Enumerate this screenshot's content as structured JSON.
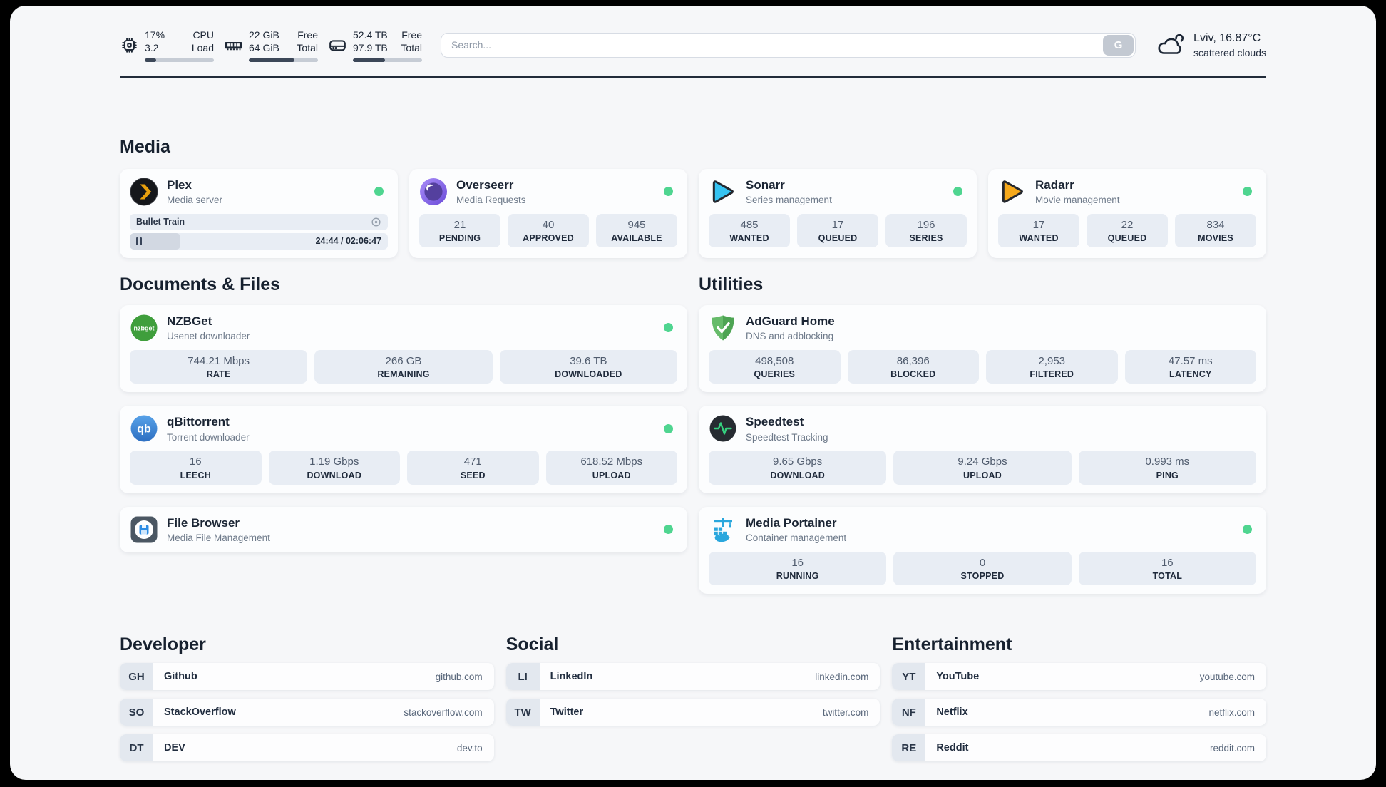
{
  "colors": {
    "online_dot": "#4fd590",
    "divider": "#222c3a",
    "stat_box_bg": "#e8edf4"
  },
  "header": {
    "cpu": {
      "value1": "17%",
      "value2": "3.2",
      "label1": "CPU",
      "label2": "Load",
      "progress_pct": 17
    },
    "memory": {
      "value1": "22 GiB",
      "value2": "64 GiB",
      "label1": "Free",
      "label2": "Total",
      "progress_pct": 66
    },
    "disk": {
      "value1": "52.4 TB",
      "value2": "97.9 TB",
      "label1": "Free",
      "label2": "Total",
      "progress_pct": 46
    },
    "search": {
      "placeholder": "Search...",
      "button_label": "G"
    },
    "weather": {
      "location_temp": "Lviv, 16.87°C",
      "condition": "scattered clouds"
    }
  },
  "sections": {
    "media": {
      "title": "Media",
      "apps": [
        {
          "name": "Plex",
          "description": "Media server",
          "now_playing": {
            "title": "Bullet Train",
            "time": "24:44 / 02:06:47",
            "progress_pct": 19.5
          }
        },
        {
          "name": "Overseerr",
          "description": "Media Requests",
          "stats": [
            {
              "value": "21",
              "label": "PENDING"
            },
            {
              "value": "40",
              "label": "APPROVED"
            },
            {
              "value": "945",
              "label": "AVAILABLE"
            }
          ]
        },
        {
          "name": "Sonarr",
          "description": "Series management",
          "stats": [
            {
              "value": "485",
              "label": "WANTED"
            },
            {
              "value": "17",
              "label": "QUEUED"
            },
            {
              "value": "196",
              "label": "SERIES"
            }
          ]
        },
        {
          "name": "Radarr",
          "description": "Movie management",
          "stats": [
            {
              "value": "17",
              "label": "WANTED"
            },
            {
              "value": "22",
              "label": "QUEUED"
            },
            {
              "value": "834",
              "label": "MOVIES"
            }
          ]
        }
      ]
    },
    "documents": {
      "title": "Documents & Files",
      "apps": [
        {
          "name": "NZBGet",
          "description": "Usenet downloader",
          "stats": [
            {
              "value": "744.21 Mbps",
              "label": "RATE"
            },
            {
              "value": "266 GB",
              "label": "REMAINING"
            },
            {
              "value": "39.6 TB",
              "label": "DOWNLOADED"
            }
          ]
        },
        {
          "name": "qBittorrent",
          "description": "Torrent downloader",
          "stats": [
            {
              "value": "16",
              "label": "LEECH"
            },
            {
              "value": "1.19 Gbps",
              "label": "DOWNLOAD"
            },
            {
              "value": "471",
              "label": "SEED"
            },
            {
              "value": "618.52 Mbps",
              "label": "UPLOAD"
            }
          ]
        },
        {
          "name": "File Browser",
          "description": "Media File Management",
          "stats": []
        }
      ]
    },
    "utilities": {
      "title": "Utilities",
      "apps": [
        {
          "name": "AdGuard Home",
          "description": "DNS and adblocking",
          "stats": [
            {
              "value": "498,508",
              "label": "QUERIES"
            },
            {
              "value": "86,396",
              "label": "BLOCKED"
            },
            {
              "value": "2,953",
              "label": "FILTERED"
            },
            {
              "value": "47.57 ms",
              "label": "LATENCY"
            }
          ]
        },
        {
          "name": "Speedtest",
          "description": "Speedtest Tracking",
          "stats": [
            {
              "value": "9.65 Gbps",
              "label": "DOWNLOAD"
            },
            {
              "value": "9.24 Gbps",
              "label": "UPLOAD"
            },
            {
              "value": "0.993 ms",
              "label": "PING"
            }
          ]
        },
        {
          "name": "Media Portainer",
          "description": "Container management",
          "stats": [
            {
              "value": "16",
              "label": "RUNNING"
            },
            {
              "value": "0",
              "label": "STOPPED"
            },
            {
              "value": "16",
              "label": "TOTAL"
            }
          ]
        }
      ]
    },
    "developer": {
      "title": "Developer",
      "items": [
        {
          "abbr": "GH",
          "name": "Github",
          "url": "github.com"
        },
        {
          "abbr": "SO",
          "name": "StackOverflow",
          "url": "stackoverflow.com"
        },
        {
          "abbr": "DT",
          "name": "DEV",
          "url": "dev.to"
        }
      ]
    },
    "social": {
      "title": "Social",
      "items": [
        {
          "abbr": "LI",
          "name": "LinkedIn",
          "url": "linkedin.com"
        },
        {
          "abbr": "TW",
          "name": "Twitter",
          "url": "twitter.com"
        }
      ]
    },
    "entertainment": {
      "title": "Entertainment",
      "items": [
        {
          "abbr": "YT",
          "name": "YouTube",
          "url": "youtube.com"
        },
        {
          "abbr": "NF",
          "name": "Netflix",
          "url": "netflix.com"
        },
        {
          "abbr": "RE",
          "name": "Reddit",
          "url": "reddit.com"
        }
      ]
    }
  }
}
